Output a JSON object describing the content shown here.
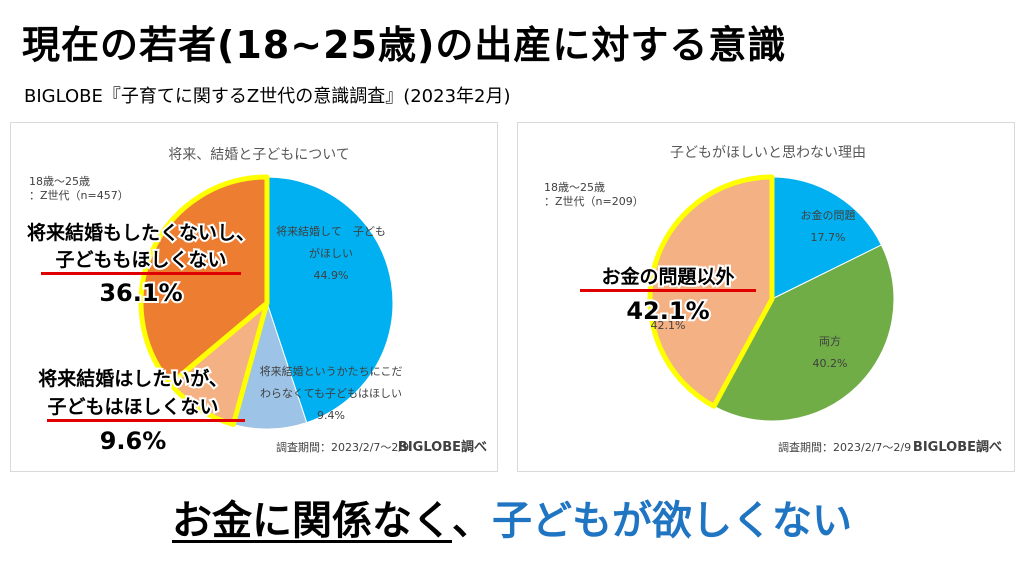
{
  "header": {
    "title": "現在の若者(18~25歳)の出産に対する意識",
    "subtitle": "BIGLOBE『子育てに関するZ世代の意識調査』(2023年2月)"
  },
  "chart_data": [
    {
      "type": "pie",
      "title": "将来、結婚と子どもについて",
      "respondents": [
        "18歳〜25歳",
        "：Z世代（n=457）"
      ],
      "series": [
        {
          "values": [
            44.9,
            9.4,
            9.6,
            36.1
          ],
          "labels": [
            [
              "将来結婚して　子ども",
              "がほしい",
              "44.9%"
            ],
            [
              "将来結婚というかたちにこだ",
              "わらなくても子どもはほしい",
              "9.4%"
            ],
            [
              "",
              "",
              "9.6%"
            ],
            [
              "",
              "",
              ""
            ]
          ],
          "colors": [
            "#00b0f0",
            "#9dc3e6",
            "#f4b183",
            "#ed7d31"
          ]
        }
      ],
      "highlight": [
        {
          "lines": [
            "将来結婚もしたくないし、",
            "子どももほしくない",
            "36.1%"
          ]
        },
        {
          "lines": [
            "将来結婚はしたいが、",
            "子どもはほしくない",
            "9.6%"
          ]
        }
      ],
      "period": "調査期間：2023/2/7〜2/9",
      "source": "BIGLOBE調べ"
    },
    {
      "type": "pie",
      "title": "子どもがほしいと思わない理由",
      "respondents": [
        "18歳〜25歳",
        "：Z世代（n=209）"
      ],
      "series": [
        {
          "values": [
            17.7,
            40.2,
            42.1
          ],
          "labels": [
            [
              "お金の問題",
              "17.7%"
            ],
            [
              "両方",
              "40.2%"
            ],
            [
              "",
              "42.1%"
            ]
          ],
          "colors": [
            "#00b0f0",
            "#70ad47",
            "#f4b183"
          ]
        }
      ],
      "highlight": [
        {
          "lines": [
            "お金の問題以外",
            "42.1%"
          ]
        }
      ],
      "period": "調査期間：2023/2/7〜2/9",
      "source": "BIGLOBE調べ"
    }
  ],
  "footer": {
    "part1": "お金に関係なく",
    "part2": "、",
    "part3": "子どもが欲しくない"
  }
}
